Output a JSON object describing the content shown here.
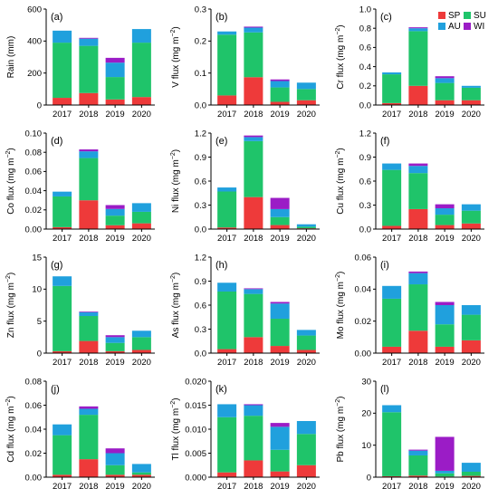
{
  "colors": {
    "SP": "#ee3a3a",
    "SU": "#1fc46a",
    "AU": "#20a0dd",
    "WI": "#9b1cc6"
  },
  "legend": [
    {
      "key": "SP",
      "label": "SP"
    },
    {
      "key": "SU",
      "label": "SU"
    },
    {
      "key": "AU",
      "label": "AU"
    },
    {
      "key": "WI",
      "label": "WI"
    }
  ],
  "chart_data": [
    {
      "type": "bar",
      "stacked": true,
      "panel_label": "(a)",
      "ylabel": "Rain (mm)",
      "ylim": [
        0,
        600
      ],
      "yticks": [
        "0",
        "200",
        "400",
        "600"
      ],
      "yticks_v": [
        0,
        200,
        400,
        600
      ],
      "categories": [
        "2017",
        "2018",
        "2019",
        "2020"
      ],
      "series": [
        {
          "name": "SP",
          "values": [
            45,
            75,
            35,
            50
          ]
        },
        {
          "name": "SU",
          "values": [
            345,
            295,
            140,
            340
          ]
        },
        {
          "name": "AU",
          "values": [
            75,
            45,
            90,
            85
          ]
        },
        {
          "name": "WI",
          "values": [
            0,
            5,
            30,
            0
          ]
        }
      ]
    },
    {
      "type": "bar",
      "stacked": true,
      "panel_label": "(b)",
      "ylabel": "V flux (mg m",
      "ylim": [
        0,
        0.3
      ],
      "yticks": [
        "0.0",
        "0.1",
        "0.2",
        "0.3"
      ],
      "yticks_v": [
        0,
        0.1,
        0.2,
        0.3
      ],
      "categories": [
        "2017",
        "2018",
        "2019",
        "2020"
      ],
      "series": [
        {
          "name": "SP",
          "values": [
            0.03,
            0.087,
            0.01,
            0.015
          ]
        },
        {
          "name": "SU",
          "values": [
            0.19,
            0.14,
            0.045,
            0.035
          ]
        },
        {
          "name": "AU",
          "values": [
            0.01,
            0.015,
            0.02,
            0.02
          ]
        },
        {
          "name": "WI",
          "values": [
            0,
            0.003,
            0.005,
            0
          ]
        }
      ]
    },
    {
      "type": "bar",
      "stacked": true,
      "panel_label": "(c)",
      "ylabel": "Cr flux (mg m",
      "ylim": [
        0,
        1.0
      ],
      "yticks": [
        "0.0",
        "0.2",
        "0.4",
        "0.6",
        "0.8",
        "1.0"
      ],
      "yticks_v": [
        0,
        0.2,
        0.4,
        0.6,
        0.8,
        1.0
      ],
      "categories": [
        "2017",
        "2018",
        "2019",
        "2020"
      ],
      "series": [
        {
          "name": "SP",
          "values": [
            0.02,
            0.2,
            0.05,
            0.05
          ]
        },
        {
          "name": "SU",
          "values": [
            0.3,
            0.57,
            0.18,
            0.13
          ]
        },
        {
          "name": "AU",
          "values": [
            0.02,
            0.03,
            0.05,
            0.02
          ]
        },
        {
          "name": "WI",
          "values": [
            0,
            0.01,
            0.02,
            0
          ]
        }
      ]
    },
    {
      "type": "bar",
      "stacked": true,
      "panel_label": "(d)",
      "ylabel": "Co flux (mg m",
      "ylim": [
        0,
        0.1
      ],
      "yticks": [
        "0.00",
        "0.02",
        "0.04",
        "0.06",
        "0.08",
        "0.10"
      ],
      "yticks_v": [
        0,
        0.02,
        0.04,
        0.06,
        0.08,
        0.1
      ],
      "categories": [
        "2017",
        "2018",
        "2019",
        "2020"
      ],
      "series": [
        {
          "name": "SP",
          "values": [
            0.002,
            0.03,
            0.004,
            0.006
          ]
        },
        {
          "name": "SU",
          "values": [
            0.032,
            0.044,
            0.01,
            0.012
          ]
        },
        {
          "name": "AU",
          "values": [
            0.005,
            0.007,
            0.007,
            0.009
          ]
        },
        {
          "name": "WI",
          "values": [
            0,
            0.002,
            0.004,
            0
          ]
        }
      ]
    },
    {
      "type": "bar",
      "stacked": true,
      "panel_label": "(e)",
      "ylabel": "Ni flux (mg m",
      "ylim": [
        0,
        1.2
      ],
      "yticks": [
        "0.0",
        "0.3",
        "0.6",
        "0.9",
        "1.2"
      ],
      "yticks_v": [
        0,
        0.3,
        0.6,
        0.9,
        1.2
      ],
      "categories": [
        "2017",
        "2018",
        "2019",
        "2020"
      ],
      "series": [
        {
          "name": "SP",
          "values": [
            0.02,
            0.4,
            0.05,
            0.01
          ]
        },
        {
          "name": "SU",
          "values": [
            0.45,
            0.7,
            0.1,
            0.02
          ]
        },
        {
          "name": "AU",
          "values": [
            0.05,
            0.05,
            0.1,
            0.03
          ]
        },
        {
          "name": "WI",
          "values": [
            0,
            0.02,
            0.14,
            0
          ]
        }
      ]
    },
    {
      "type": "bar",
      "stacked": true,
      "panel_label": "(f)",
      "ylabel": "Cu flux (mg m",
      "ylim": [
        0,
        1.2
      ],
      "yticks": [
        "0.0",
        "0.3",
        "0.6",
        "0.9",
        "1.2"
      ],
      "yticks_v": [
        0,
        0.3,
        0.6,
        0.9,
        1.2
      ],
      "categories": [
        "2017",
        "2018",
        "2019",
        "2020"
      ],
      "series": [
        {
          "name": "SP",
          "values": [
            0.04,
            0.25,
            0.05,
            0.07
          ]
        },
        {
          "name": "SU",
          "values": [
            0.7,
            0.45,
            0.13,
            0.16
          ]
        },
        {
          "name": "AU",
          "values": [
            0.08,
            0.09,
            0.08,
            0.08
          ]
        },
        {
          "name": "WI",
          "values": [
            0,
            0.03,
            0.05,
            0
          ]
        }
      ]
    },
    {
      "type": "bar",
      "stacked": true,
      "panel_label": "(g)",
      "ylabel": "Zn flux (mg m",
      "ylim": [
        0,
        15
      ],
      "yticks": [
        "0",
        "5",
        "10",
        "15"
      ],
      "yticks_v": [
        0,
        5,
        10,
        15
      ],
      "categories": [
        "2017",
        "2018",
        "2019",
        "2020"
      ],
      "series": [
        {
          "name": "SP",
          "values": [
            0.3,
            1.9,
            0.3,
            0.5
          ]
        },
        {
          "name": "SU",
          "values": [
            10.2,
            3.9,
            1.3,
            2.0
          ]
        },
        {
          "name": "AU",
          "values": [
            1.5,
            0.6,
            0.9,
            1.0
          ]
        },
        {
          "name": "WI",
          "values": [
            0,
            0.1,
            0.3,
            0
          ]
        }
      ]
    },
    {
      "type": "bar",
      "stacked": true,
      "panel_label": "(h)",
      "ylabel": "As flux (mg m",
      "ylim": [
        0,
        1.2
      ],
      "yticks": [
        "0.0",
        "0.3",
        "0.6",
        "0.9",
        "1.2"
      ],
      "yticks_v": [
        0,
        0.3,
        0.6,
        0.9,
        1.2
      ],
      "categories": [
        "2017",
        "2018",
        "2019",
        "2020"
      ],
      "series": [
        {
          "name": "SP",
          "values": [
            0.05,
            0.2,
            0.09,
            0.04
          ]
        },
        {
          "name": "SU",
          "values": [
            0.72,
            0.54,
            0.34,
            0.18
          ]
        },
        {
          "name": "AU",
          "values": [
            0.11,
            0.06,
            0.19,
            0.07
          ]
        },
        {
          "name": "WI",
          "values": [
            0,
            0.01,
            0.02,
            0
          ]
        }
      ]
    },
    {
      "type": "bar",
      "stacked": true,
      "panel_label": "(i)",
      "ylabel": "Mo flux (mg m",
      "ylim": [
        0,
        0.06
      ],
      "yticks": [
        "0.00",
        "0.02",
        "0.04",
        "0.06"
      ],
      "yticks_v": [
        0,
        0.02,
        0.04,
        0.06
      ],
      "categories": [
        "2017",
        "2018",
        "2019",
        "2020"
      ],
      "series": [
        {
          "name": "SP",
          "values": [
            0.004,
            0.014,
            0.004,
            0.008
          ]
        },
        {
          "name": "SU",
          "values": [
            0.03,
            0.029,
            0.014,
            0.016
          ]
        },
        {
          "name": "AU",
          "values": [
            0.008,
            0.007,
            0.012,
            0.006
          ]
        },
        {
          "name": "WI",
          "values": [
            0,
            0.001,
            0.002,
            0
          ]
        }
      ]
    },
    {
      "type": "bar",
      "stacked": true,
      "panel_label": "(j)",
      "ylabel": "Cd flux (mg m",
      "ylim": [
        0,
        0.08
      ],
      "yticks": [
        "0.00",
        "0.02",
        "0.04",
        "0.06",
        "0.08"
      ],
      "yticks_v": [
        0,
        0.02,
        0.04,
        0.06,
        0.08
      ],
      "categories": [
        "2017",
        "2018",
        "2019",
        "2020"
      ],
      "series": [
        {
          "name": "SP",
          "values": [
            0.002,
            0.015,
            0.002,
            0.002
          ]
        },
        {
          "name": "SU",
          "values": [
            0.033,
            0.037,
            0.008,
            0.002
          ]
        },
        {
          "name": "AU",
          "values": [
            0.009,
            0.005,
            0.01,
            0.007
          ]
        },
        {
          "name": "WI",
          "values": [
            0,
            0.002,
            0.004,
            0
          ]
        }
      ]
    },
    {
      "type": "bar",
      "stacked": true,
      "panel_label": "(k)",
      "ylabel": "Tl flux (mg m",
      "ylim": [
        0,
        0.02
      ],
      "yticks": [
        "0.000",
        "0.005",
        "0.010",
        "0.015",
        "0.020"
      ],
      "yticks_v": [
        0,
        0.005,
        0.01,
        0.015,
        0.02
      ],
      "categories": [
        "2017",
        "2018",
        "2019",
        "2020"
      ],
      "series": [
        {
          "name": "SP",
          "values": [
            0.001,
            0.0035,
            0.0012,
            0.0025
          ]
        },
        {
          "name": "SU",
          "values": [
            0.0115,
            0.0093,
            0.0045,
            0.0065
          ]
        },
        {
          "name": "AU",
          "values": [
            0.0027,
            0.0022,
            0.0048,
            0.0027
          ]
        },
        {
          "name": "WI",
          "values": [
            0,
            0.0002,
            0.0008,
            0
          ]
        }
      ]
    },
    {
      "type": "bar",
      "stacked": true,
      "panel_label": "(l)",
      "ylabel": "Pb flux (mg m",
      "ylim": [
        0,
        30
      ],
      "yticks": [
        "0",
        "10",
        "20",
        "30"
      ],
      "yticks_v": [
        0,
        10,
        20,
        30
      ],
      "categories": [
        "2017",
        "2018",
        "2019",
        "2020"
      ],
      "series": [
        {
          "name": "SP",
          "values": [
            0.3,
            0.5,
            0.2,
            0.4
          ]
        },
        {
          "name": "SU",
          "values": [
            20,
            6.3,
            1.0,
            1.3
          ]
        },
        {
          "name": "AU",
          "values": [
            2.2,
            1.5,
            0.8,
            2.8
          ]
        },
        {
          "name": "WI",
          "values": [
            0,
            0.3,
            10.6,
            0
          ]
        }
      ]
    }
  ]
}
